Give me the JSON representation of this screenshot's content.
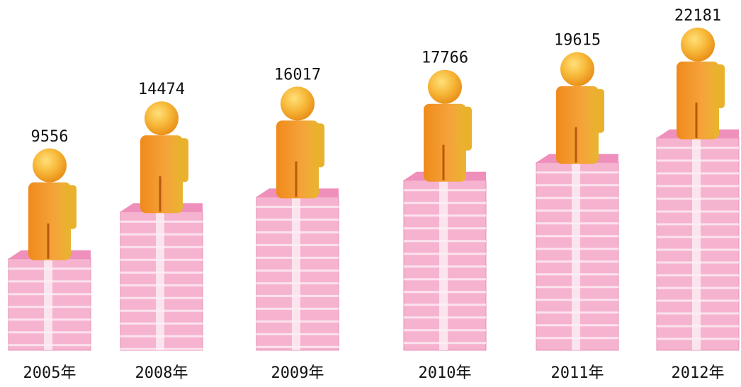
{
  "chart_data": {
    "type": "bar",
    "categories": [
      "2005年",
      "2008年",
      "2009年",
      "2010年",
      "2011年",
      "2012年"
    ],
    "values": [
      9556,
      14474,
      16017,
      17766,
      19615,
      22181
    ]
  }
}
